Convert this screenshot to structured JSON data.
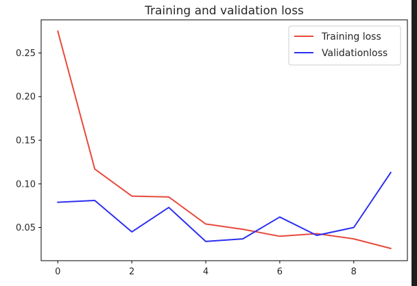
{
  "chart_data": {
    "type": "line",
    "title": "Training and validation loss",
    "xlabel": "",
    "ylabel": "",
    "x": [
      0,
      1,
      2,
      3,
      4,
      5,
      6,
      7,
      8,
      9
    ],
    "xlim": [
      -0.45,
      9.45
    ],
    "ylim": [
      0.012,
      0.288
    ],
    "xticks": [
      0,
      2,
      4,
      6,
      8
    ],
    "xtick_labels": [
      "0",
      "2",
      "4",
      "6",
      "8"
    ],
    "yticks": [
      0.05,
      0.1,
      0.15,
      0.2,
      0.25
    ],
    "ytick_labels": [
      "0.05",
      "0.10",
      "0.15",
      "0.20",
      "0.25"
    ],
    "grid": false,
    "legend_position": "top-right",
    "series": [
      {
        "name": "Training loss",
        "color": "#e8483a",
        "values": [
          0.275,
          0.117,
          0.086,
          0.085,
          0.054,
          0.048,
          0.04,
          0.043,
          0.037,
          0.026
        ]
      },
      {
        "name": "Validationloss",
        "color": "#2a2ef0",
        "values": [
          0.079,
          0.081,
          0.045,
          0.073,
          0.034,
          0.037,
          0.062,
          0.041,
          0.05,
          0.113
        ]
      }
    ]
  }
}
